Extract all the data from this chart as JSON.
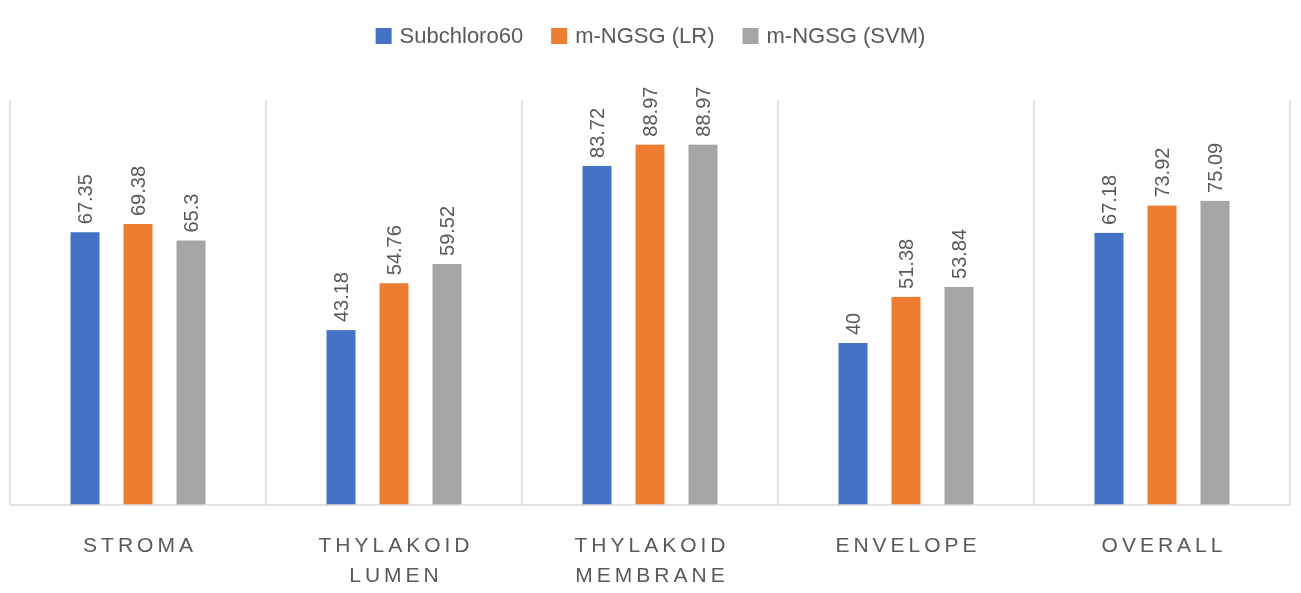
{
  "chart_data": {
    "type": "bar",
    "categories": [
      "STROMA",
      "THYLAKOID LUMEN",
      "THYLAKOID MEMBRANE",
      "ENVELOPE",
      "OVERALL"
    ],
    "series": [
      {
        "name": "Subchloro60",
        "color": "#4472c4",
        "values": [
          67.35,
          43.18,
          83.72,
          40,
          67.18
        ]
      },
      {
        "name": "m-NGSG (LR)",
        "color": "#ed7d31",
        "values": [
          69.38,
          54.76,
          88.97,
          51.38,
          73.92
        ]
      },
      {
        "name": "m-NGSG (SVM)",
        "color": "#a5a5a5",
        "values": [
          65.3,
          59.52,
          88.97,
          53.84,
          75.09
        ]
      }
    ],
    "ylim": [
      0,
      100
    ],
    "tick_labels": "x",
    "grid": "x",
    "legend": "top",
    "data_labels": true
  }
}
